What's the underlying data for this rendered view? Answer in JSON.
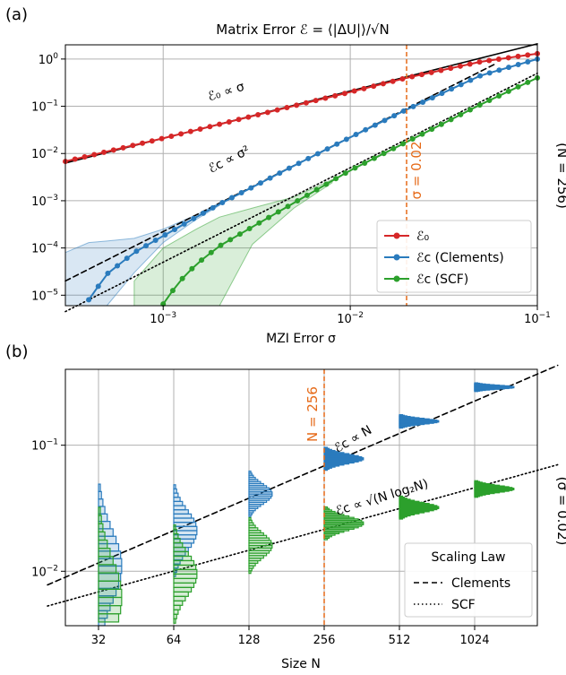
{
  "chart_data": [
    {
      "panel_label": "(a)",
      "type": "line",
      "title": "Matrix Error ℰ = ⟨|ΔU|⟩/√N",
      "xlabel": "MZI Error σ",
      "ylabel": "",
      "side_label": "(N = 256)",
      "x_scale": "log",
      "y_scale": "log",
      "xlim": [
        0.0003,
        0.1
      ],
      "ylim": [
        6e-06,
        2
      ],
      "x_ticks": [
        {
          "value": 0.001,
          "mant": "10",
          "exp": "−3"
        },
        {
          "value": 0.01,
          "mant": "10",
          "exp": "−2"
        },
        {
          "value": 0.1,
          "mant": "10",
          "exp": "−1"
        }
      ],
      "y_ticks": [
        {
          "value": 1,
          "mant": "10",
          "exp": "0"
        },
        {
          "value": 0.1,
          "mant": "10",
          "exp": "−1"
        },
        {
          "value": 0.01,
          "mant": "10",
          "exp": "−2"
        },
        {
          "value": 0.001,
          "mant": "10",
          "exp": "−3"
        },
        {
          "value": 0.0001,
          "mant": "10",
          "exp": "−4"
        },
        {
          "value": 1e-05,
          "mant": "10",
          "exp": "−5"
        }
      ],
      "grid": true,
      "legend_position": "lower-right",
      "vline": {
        "x": 0.02,
        "label": "σ = 0.02",
        "color": "#e66a18"
      },
      "series": [
        {
          "name": "ℰ₀",
          "color": "#d62728",
          "x": [
            0.0003,
            0.001,
            0.003,
            0.01,
            0.02,
            0.05,
            0.1
          ],
          "y": [
            0.0068,
            0.021,
            0.062,
            0.2,
            0.4,
            0.88,
            1.3
          ]
        },
        {
          "name": "ℰc (Clements)",
          "color": "#2a7bbd",
          "x": [
            0.0004,
            0.0005,
            0.0007,
            0.001,
            0.002,
            0.005,
            0.01,
            0.02,
            0.05,
            0.1
          ],
          "y": [
            8e-06,
            2.8e-05,
            8e-05,
            0.00018,
            0.00085,
            0.0055,
            0.022,
            0.085,
            0.45,
            1.0
          ],
          "band_x": [
            0.0003,
            0.0004,
            0.0005,
            0.0007,
            0.001,
            0.0015,
            0.002
          ],
          "band_low": [
            6e-06,
            6e-06,
            6e-06,
            3e-05,
            0.00013,
            0.0004,
            0.0008
          ],
          "band_high": [
            8e-05,
            0.00013,
            0.00014,
            0.00016,
            0.00025,
            0.0005,
            0.0009
          ]
        },
        {
          "name": "ℰc (SCF)",
          "color": "#2ca02c",
          "x": [
            0.001,
            0.0012,
            0.0015,
            0.002,
            0.003,
            0.005,
            0.01,
            0.02,
            0.05,
            0.1
          ],
          "y": [
            6.5e-06,
            1.8e-05,
            4.5e-05,
            0.00011,
            0.00028,
            0.0009,
            0.0044,
            0.0175,
            0.11,
            0.4
          ],
          "band_x": [
            0.0007,
            0.001,
            0.0015,
            0.002,
            0.003,
            0.005,
            0.008
          ],
          "band_low": [
            6e-06,
            6e-06,
            6e-06,
            6e-06,
            0.00012,
            0.0007,
            0.0024
          ],
          "band_high": [
            2e-05,
            0.0001,
            0.00025,
            0.00045,
            0.0007,
            0.0012,
            0.0028
          ]
        }
      ],
      "fit_lines": [
        {
          "style": "solid",
          "label": "ℰ₀ ∝ σ",
          "x": [
            0.0003,
            0.1
          ],
          "y": [
            0.0063,
            2.1
          ]
        },
        {
          "style": "dashed",
          "label": "ℰc ∝ σ²",
          "x": [
            0.0003,
            0.06
          ],
          "y": [
            2e-05,
            0.8
          ]
        },
        {
          "style": "dotted",
          "label": "",
          "x": [
            0.0003,
            0.1
          ],
          "y": [
            4.5e-06,
            0.5
          ]
        }
      ]
    },
    {
      "panel_label": "(b)",
      "type": "histogram",
      "xlabel": "Size N",
      "ylabel": "",
      "side_label": "(σ = 0.02)",
      "x_scale": "log2",
      "y_scale": "log",
      "categories": [
        "32",
        "64",
        "128",
        "256",
        "512",
        "1024"
      ],
      "ylim": [
        0.0037,
        0.4
      ],
      "y_ticks": [
        {
          "value": 0.1,
          "mant": "10",
          "exp": "−1"
        },
        {
          "value": 0.01,
          "mant": "10",
          "exp": "−2"
        }
      ],
      "grid": true,
      "vline": {
        "x": "256",
        "label": "N = 256",
        "color": "#e66a18"
      },
      "legend": {
        "title": "Scaling Law",
        "position": "lower-right",
        "entries": [
          {
            "style": "dashed",
            "label": "Clements"
          },
          {
            "style": "dotted",
            "label": "SCF"
          }
        ]
      },
      "fit_lines": [
        {
          "style": "dashed",
          "label": "ℰc ∝ N",
          "x": [
            20,
            2200
          ],
          "y": [
            0.0078,
            0.43
          ]
        },
        {
          "style": "dotted",
          "label": "ℰc ∝ √(N log₂N)",
          "x": [
            20,
            2200
          ],
          "y": [
            0.0053,
            0.07
          ]
        }
      ],
      "series": [
        {
          "name": "Clements",
          "color": "#2a7bbd",
          "centers": [
            0.011,
            0.021,
            0.041,
            0.078,
            0.155,
            0.29
          ],
          "spread": [
            0.5,
            0.28,
            0.14,
            0.07,
            0.04,
            0.025
          ]
        },
        {
          "name": "SCF",
          "color": "#2ca02c",
          "centers": [
            0.0062,
            0.0095,
            0.016,
            0.024,
            0.032,
            0.045
          ],
          "spread": [
            0.55,
            0.3,
            0.17,
            0.1,
            0.07,
            0.05
          ]
        }
      ]
    }
  ],
  "legend_a": [
    {
      "label": "ℰ₀",
      "color": "#d62728"
    },
    {
      "label": "ℰc (Clements)",
      "color": "#2a7bbd"
    },
    {
      "label": "ℰc (SCF)",
      "color": "#2ca02c"
    }
  ]
}
